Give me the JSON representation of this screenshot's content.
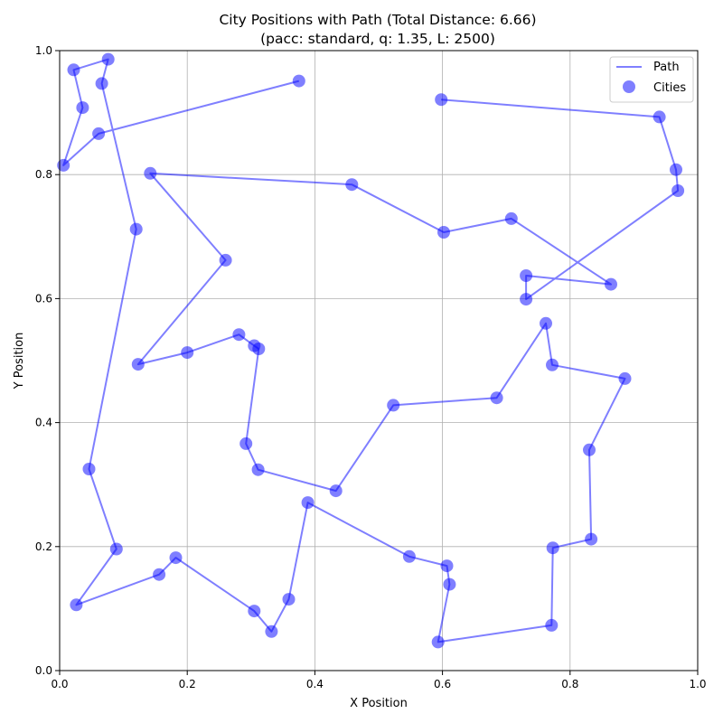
{
  "chart_data": {
    "type": "scatter",
    "title_line1": "City Positions with Path (Total Distance: 6.66)",
    "title_line2": "(pacc: standard, q: 1.35, L: 2500)",
    "xlabel": "X Position",
    "ylabel": "Y Position",
    "xlim": [
      0.0,
      1.0
    ],
    "ylim": [
      0.0,
      1.0
    ],
    "xticks": [
      0.0,
      0.2,
      0.4,
      0.6,
      0.8,
      1.0
    ],
    "yticks": [
      0.0,
      0.2,
      0.4,
      0.6,
      0.8,
      1.0
    ],
    "xtick_labels": [
      "0.0",
      "0.2",
      "0.4",
      "0.6",
      "0.8",
      "1.0"
    ],
    "ytick_labels": [
      "0.0",
      "0.2",
      "0.4",
      "0.6",
      "0.8",
      "1.0"
    ],
    "grid": true,
    "legend_position": "top-right",
    "legend": {
      "path_label": "Path",
      "cities_label": "Cities"
    },
    "color": "#0000ff",
    "path": [
      [
        0.598,
        0.921
      ],
      [
        0.94,
        0.893
      ],
      [
        0.966,
        0.808
      ],
      [
        0.969,
        0.774
      ],
      [
        0.731,
        0.599
      ],
      [
        0.731,
        0.637
      ],
      [
        0.864,
        0.623
      ],
      [
        0.708,
        0.729
      ],
      [
        0.602,
        0.707
      ],
      [
        0.458,
        0.784
      ],
      [
        0.142,
        0.802
      ],
      [
        0.26,
        0.662
      ],
      [
        0.123,
        0.494
      ],
      [
        0.2,
        0.513
      ],
      [
        0.281,
        0.542
      ],
      [
        0.305,
        0.524
      ],
      [
        0.312,
        0.519
      ],
      [
        0.292,
        0.366
      ],
      [
        0.311,
        0.324
      ],
      [
        0.433,
        0.29
      ],
      [
        0.523,
        0.428
      ],
      [
        0.685,
        0.44
      ],
      [
        0.762,
        0.56
      ],
      [
        0.772,
        0.493
      ],
      [
        0.886,
        0.471
      ],
      [
        0.83,
        0.356
      ],
      [
        0.833,
        0.212
      ],
      [
        0.773,
        0.198
      ],
      [
        0.771,
        0.073
      ],
      [
        0.593,
        0.046
      ],
      [
        0.611,
        0.139
      ],
      [
        0.607,
        0.169
      ],
      [
        0.548,
        0.184
      ],
      [
        0.389,
        0.271
      ],
      [
        0.359,
        0.115
      ],
      [
        0.332,
        0.063
      ],
      [
        0.305,
        0.096
      ],
      [
        0.182,
        0.182
      ],
      [
        0.156,
        0.155
      ],
      [
        0.026,
        0.106
      ],
      [
        0.089,
        0.196
      ],
      [
        0.046,
        0.325
      ],
      [
        0.12,
        0.712
      ],
      [
        0.066,
        0.947
      ],
      [
        0.076,
        0.986
      ],
      [
        0.022,
        0.969
      ],
      [
        0.036,
        0.908
      ],
      [
        0.006,
        0.815
      ],
      [
        0.061,
        0.866
      ],
      [
        0.375,
        0.951
      ]
    ]
  }
}
